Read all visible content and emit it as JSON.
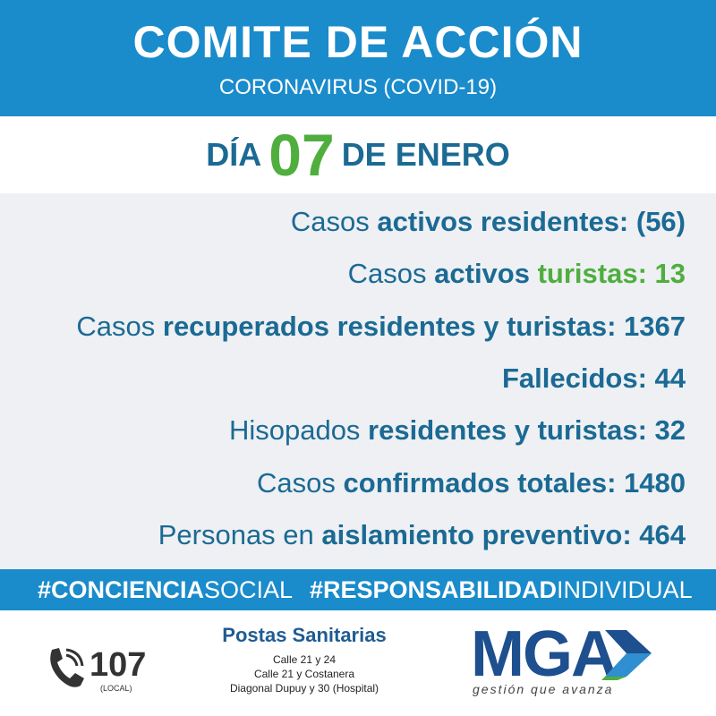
{
  "header": {
    "title": "COMITE DE ACCIÓN",
    "subtitle": "CORONAVIRUS (COVID-19)"
  },
  "date": {
    "prefix": "DÍA",
    "day": "07",
    "suffix": "DE ENERO"
  },
  "stats": [
    {
      "segments": [
        {
          "text": "Casos ",
          "bold": false
        },
        {
          "text": "activos residentes: (56)",
          "bold": true
        }
      ]
    },
    {
      "segments": [
        {
          "text": "Casos ",
          "bold": false
        },
        {
          "text": "activos ",
          "bold": true
        },
        {
          "text": "turistas: 13",
          "bold": true,
          "color": "#4fae3e"
        }
      ]
    },
    {
      "segments": [
        {
          "text": "Casos ",
          "bold": false
        },
        {
          "text": "recuperados residentes y turistas: 1367",
          "bold": true
        }
      ]
    },
    {
      "segments": [
        {
          "text": "Fallecidos: 44",
          "bold": true
        }
      ]
    },
    {
      "segments": [
        {
          "text": "Hisopados ",
          "bold": false
        },
        {
          "text": "residentes y turistas: 32",
          "bold": true
        }
      ]
    },
    {
      "segments": [
        {
          "text": "Casos ",
          "bold": false
        },
        {
          "text": "confirmados totales: 1480",
          "bold": true
        }
      ]
    },
    {
      "segments": [
        {
          "text": "Personas en ",
          "bold": false
        },
        {
          "text": "aislamiento preventivo: 464",
          "bold": true
        }
      ]
    }
  ],
  "hashtags": [
    {
      "segments": [
        {
          "text": "#CONCIENCIA",
          "bold": true
        },
        {
          "text": "SOCIAL",
          "bold": false
        }
      ]
    },
    {
      "segments": [
        {
          "text": "#RESPONSABILIDAD",
          "bold": true
        },
        {
          "text": "INDIVIDUAL",
          "bold": false
        }
      ]
    }
  ],
  "footer": {
    "phone": "107",
    "phone_note": "(LOCAL)",
    "postas_title": "Postas Sanitarias",
    "addresses": [
      "Calle 21 y 24",
      "Calle 21 y Costanera",
      "Diagonal Dupuy y 30 (Hospital)"
    ],
    "logo": "MGA",
    "tagline": "gestión que avanza"
  }
}
